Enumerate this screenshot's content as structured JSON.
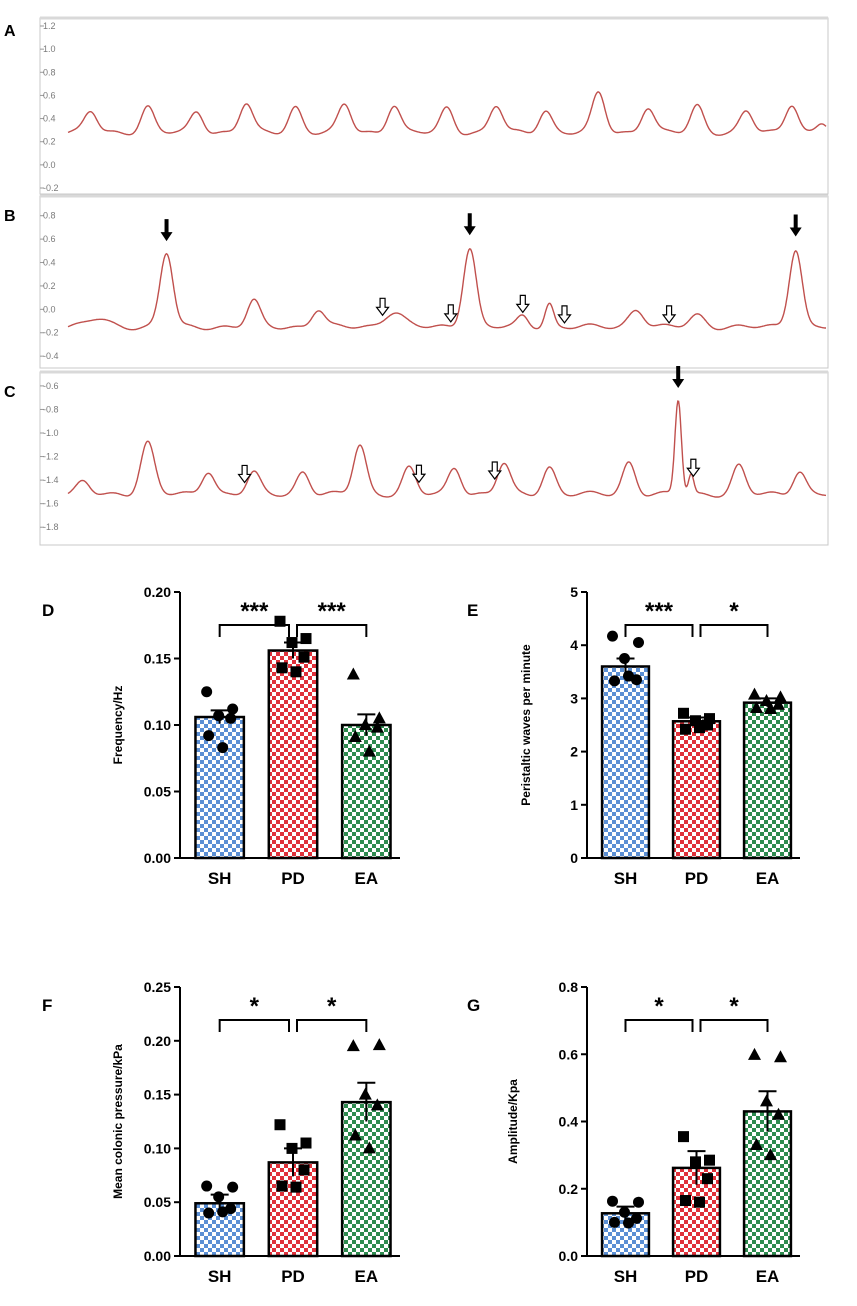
{
  "colors": {
    "trace": "#c0504d",
    "trace_bg": "#ffffff",
    "frame": "#c8c8c8",
    "sh": "#5b8fd4",
    "pd": "#e0313a",
    "ea": "#2e8b4f",
    "text": "#000000",
    "tick_gray": "#7a7a7a"
  },
  "chart_data": [
    {
      "panel": "A",
      "type": "line",
      "title": "",
      "yticks": [
        "1.2",
        "1.0",
        "0.8",
        "0.6",
        "0.4",
        "0.2",
        "0.0",
        "-0.2"
      ],
      "ylim": [
        -0.2,
        1.2
      ],
      "baseline": 0.28,
      "peaks": [
        {
          "t": 0.03,
          "h": 0.46,
          "w": 0.012
        },
        {
          "t": 0.105,
          "h": 0.5,
          "w": 0.012
        },
        {
          "t": 0.17,
          "h": 0.46,
          "w": 0.012
        },
        {
          "t": 0.235,
          "h": 0.53,
          "w": 0.012
        },
        {
          "t": 0.3,
          "h": 0.5,
          "w": 0.012
        },
        {
          "t": 0.365,
          "h": 0.52,
          "w": 0.012
        },
        {
          "t": 0.43,
          "h": 0.52,
          "w": 0.012
        },
        {
          "t": 0.5,
          "h": 0.49,
          "w": 0.012
        },
        {
          "t": 0.565,
          "h": 0.51,
          "w": 0.012
        },
        {
          "t": 0.63,
          "h": 0.47,
          "w": 0.012
        },
        {
          "t": 0.7,
          "h": 0.62,
          "w": 0.012
        },
        {
          "t": 0.765,
          "h": 0.5,
          "w": 0.012
        },
        {
          "t": 0.83,
          "h": 0.51,
          "w": 0.012
        },
        {
          "t": 0.895,
          "h": 0.46,
          "w": 0.012
        },
        {
          "t": 0.955,
          "h": 0.53,
          "w": 0.012
        },
        {
          "t": 0.995,
          "h": 0.36,
          "w": 0.01
        }
      ],
      "filled_arrows": [],
      "open_arrows": []
    },
    {
      "panel": "B",
      "type": "line",
      "yticks": [
        "0.8",
        "0.6",
        "0.4",
        "0.2",
        "0.0",
        "-0.2",
        "-0.4"
      ],
      "ylim": [
        -0.45,
        0.9
      ],
      "baseline": -0.15,
      "peaks": [
        {
          "t": 0.04,
          "h": -0.08,
          "w": 0.02
        },
        {
          "t": 0.13,
          "h": 0.48,
          "w": 0.012
        },
        {
          "t": 0.245,
          "h": 0.07,
          "w": 0.012
        },
        {
          "t": 0.33,
          "h": 0.0,
          "w": 0.012
        },
        {
          "t": 0.43,
          "h": -0.02,
          "w": 0.018
        },
        {
          "t": 0.53,
          "h": 0.53,
          "w": 0.012
        },
        {
          "t": 0.6,
          "h": -0.06,
          "w": 0.01
        },
        {
          "t": 0.635,
          "h": 0.05,
          "w": 0.008
        },
        {
          "t": 0.75,
          "h": 0.0,
          "w": 0.014
        },
        {
          "t": 0.83,
          "h": -0.05,
          "w": 0.014
        },
        {
          "t": 0.96,
          "h": 0.52,
          "w": 0.012
        }
      ],
      "filled_arrows": [
        0.13,
        0.53,
        0.96
      ],
      "open_arrows": [
        0.415,
        0.505,
        0.6,
        0.655,
        0.793
      ]
    },
    {
      "panel": "C",
      "type": "line",
      "yticks": [
        "-0.6",
        "-0.8",
        "-1.0",
        "-1.2",
        "-1.4",
        "-1.6",
        "-1.8"
      ],
      "ylim": [
        -1.9,
        -0.55
      ],
      "baseline": -1.52,
      "peaks": [
        {
          "t": 0.02,
          "h": -1.42,
          "w": 0.012
        },
        {
          "t": 0.105,
          "h": -1.08,
          "w": 0.013
        },
        {
          "t": 0.185,
          "h": -1.32,
          "w": 0.012
        },
        {
          "t": 0.245,
          "h": -1.34,
          "w": 0.012
        },
        {
          "t": 0.31,
          "h": -1.33,
          "w": 0.012
        },
        {
          "t": 0.385,
          "h": -1.1,
          "w": 0.012
        },
        {
          "t": 0.45,
          "h": -1.3,
          "w": 0.012
        },
        {
          "t": 0.51,
          "h": -1.29,
          "w": 0.012
        },
        {
          "t": 0.575,
          "h": -1.26,
          "w": 0.012
        },
        {
          "t": 0.635,
          "h": -1.29,
          "w": 0.012
        },
        {
          "t": 0.74,
          "h": -1.25,
          "w": 0.012
        },
        {
          "t": 0.805,
          "h": -0.72,
          "w": 0.006
        },
        {
          "t": 0.822,
          "h": -1.35,
          "w": 0.005
        },
        {
          "t": 0.885,
          "h": -1.28,
          "w": 0.012
        },
        {
          "t": 0.965,
          "h": -1.32,
          "w": 0.012
        }
      ],
      "filled_arrows": [
        0.805
      ],
      "open_arrows": [
        0.233,
        0.463,
        0.563,
        0.825
      ]
    },
    {
      "panel": "D",
      "type": "bar",
      "categories": [
        "SH",
        "PD",
        "EA"
      ],
      "values": [
        0.106,
        0.156,
        0.1
      ],
      "errors": [
        0.005,
        0.006,
        0.008
      ],
      "points": [
        [
          0.125,
          0.112,
          0.107,
          0.105,
          0.092,
          0.083
        ],
        [
          0.178,
          0.165,
          0.162,
          0.151,
          0.143,
          0.14
        ],
        [
          0.138,
          0.105,
          0.1,
          0.098,
          0.091,
          0.08
        ]
      ],
      "markers": [
        "circle",
        "square",
        "triangle"
      ],
      "ylabel": "Frequency/Hz",
      "ylim": [
        0,
        0.2
      ],
      "yticks": [
        "0.00",
        "0.05",
        "0.10",
        "0.15",
        "0.20"
      ],
      "significance": [
        {
          "from": 0,
          "to": 1,
          "label": "***"
        },
        {
          "from": 1,
          "to": 2,
          "label": "***"
        }
      ]
    },
    {
      "panel": "E",
      "type": "bar",
      "categories": [
        "SH",
        "PD",
        "EA"
      ],
      "values": [
        3.6,
        2.57,
        2.92
      ],
      "errors": [
        0.15,
        0.07,
        0.08
      ],
      "points": [
        [
          4.17,
          4.05,
          3.75,
          3.35,
          3.33,
          3.42
        ],
        [
          2.72,
          2.62,
          2.58,
          2.5,
          2.42,
          2.45
        ],
        [
          3.07,
          3.02,
          2.95,
          2.88,
          2.82,
          2.8
        ]
      ],
      "markers": [
        "circle",
        "square",
        "triangle"
      ],
      "ylabel": "Peristaltic waves per minute",
      "ylim": [
        0,
        5
      ],
      "yticks": [
        "0",
        "1",
        "2",
        "3",
        "4",
        "5"
      ],
      "significance": [
        {
          "from": 0,
          "to": 1,
          "label": "***"
        },
        {
          "from": 1,
          "to": 2,
          "label": "*"
        }
      ]
    },
    {
      "panel": "F",
      "type": "bar",
      "categories": [
        "SH",
        "PD",
        "EA"
      ],
      "values": [
        0.049,
        0.087,
        0.143
      ],
      "errors": [
        0.008,
        0.013,
        0.018
      ],
      "points": [
        [
          0.065,
          0.064,
          0.055,
          0.044,
          0.04,
          0.041
        ],
        [
          0.122,
          0.105,
          0.1,
          0.08,
          0.065,
          0.064
        ],
        [
          0.195,
          0.196,
          0.15,
          0.14,
          0.112,
          0.1
        ]
      ],
      "markers": [
        "circle",
        "square",
        "triangle"
      ],
      "ylabel": "Mean colonic pressure/kPa",
      "ylim": [
        0,
        0.25
      ],
      "yticks": [
        "0.00",
        "0.05",
        "0.10",
        "0.15",
        "0.20",
        "0.25"
      ],
      "significance": [
        {
          "from": 0,
          "to": 1,
          "label": "*"
        },
        {
          "from": 1,
          "to": 2,
          "label": "*"
        }
      ]
    },
    {
      "panel": "G",
      "type": "bar",
      "categories": [
        "SH",
        "PD",
        "EA"
      ],
      "values": [
        0.127,
        0.262,
        0.43
      ],
      "errors": [
        0.02,
        0.05,
        0.06
      ],
      "points": [
        [
          0.163,
          0.16,
          0.13,
          0.112,
          0.1,
          0.098
        ],
        [
          0.355,
          0.285,
          0.28,
          0.23,
          0.165,
          0.16
        ],
        [
          0.598,
          0.591,
          0.46,
          0.42,
          0.33,
          0.3
        ]
      ],
      "markers": [
        "circle",
        "square",
        "triangle"
      ],
      "ylabel": "Amplitude/Kpa",
      "ylim": [
        0,
        0.8
      ],
      "yticks": [
        "0.0",
        "0.2",
        "0.4",
        "0.6",
        "0.8"
      ],
      "significance": [
        {
          "from": 0,
          "to": 1,
          "label": "*"
        },
        {
          "from": 1,
          "to": 2,
          "label": "*"
        }
      ]
    }
  ]
}
